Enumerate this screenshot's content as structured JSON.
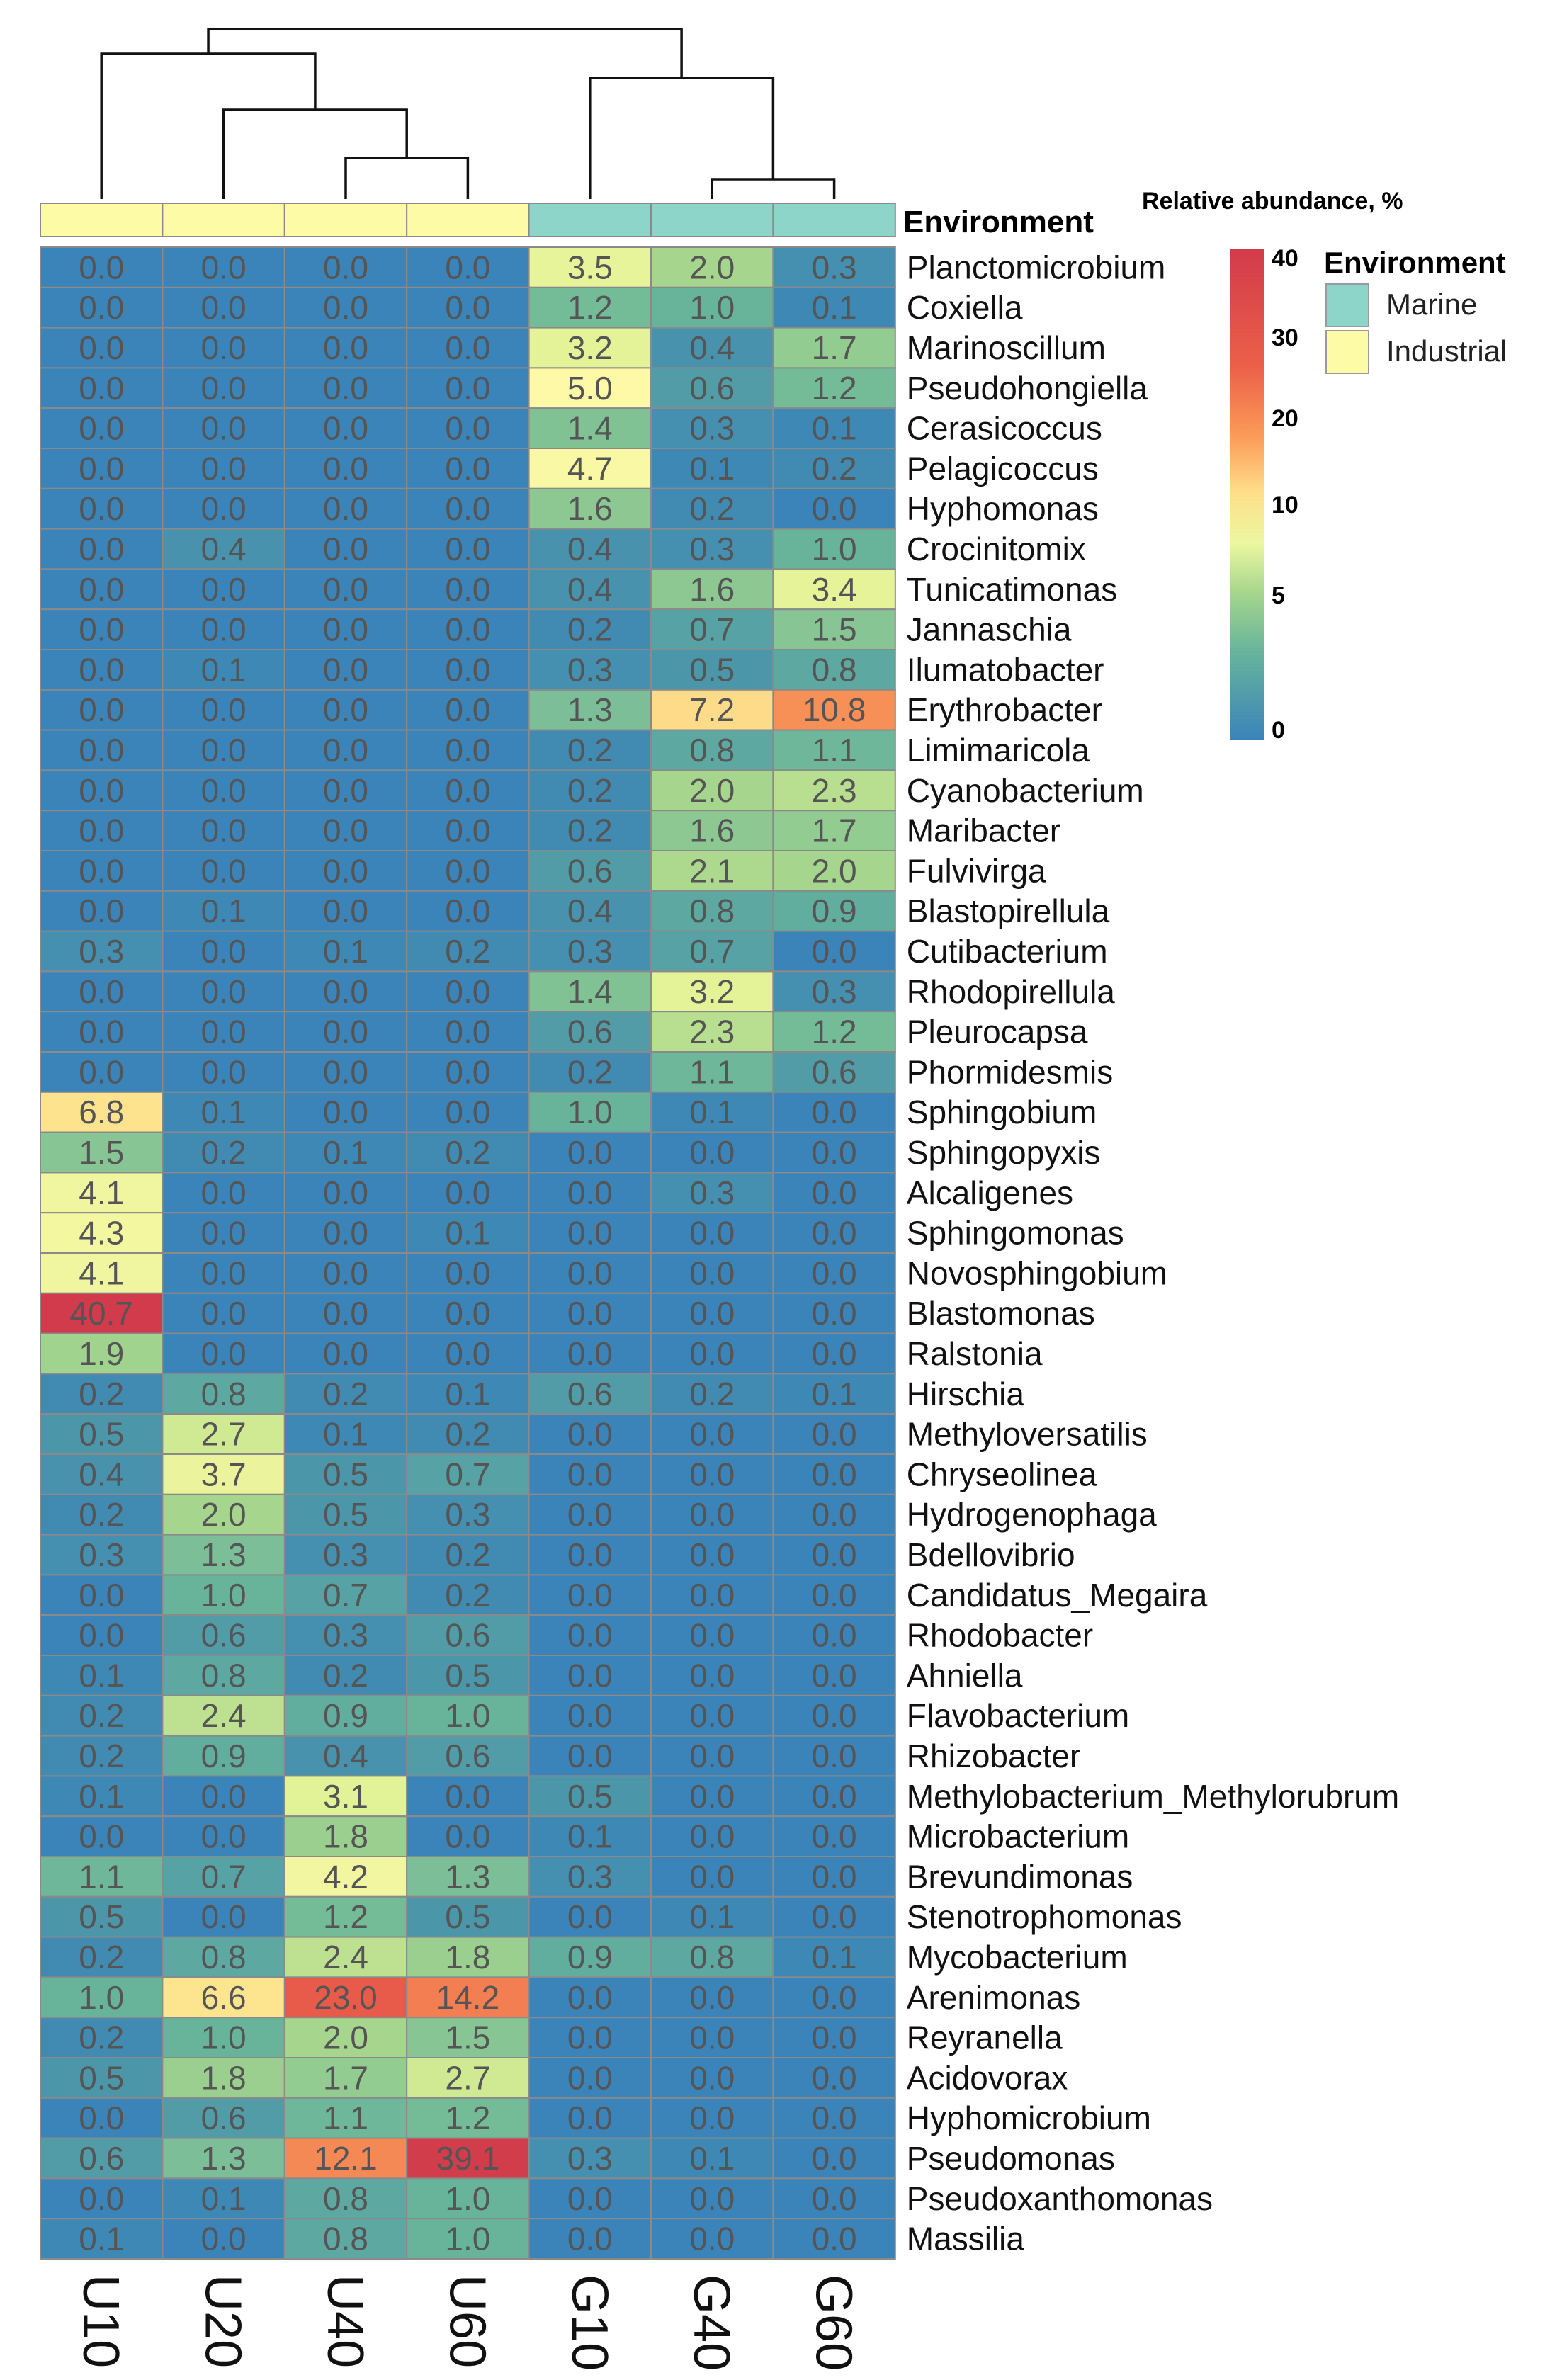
{
  "chart_data": {
    "type": "heatmap",
    "title": "",
    "colorbar_title": "Relative abundance, %",
    "colorbar_ticks": [
      "40",
      "30",
      "20",
      "10",
      "5",
      "0"
    ],
    "annotation_title": "Environment",
    "legend": {
      "title": "Environment",
      "items": [
        {
          "label": "Marine",
          "color": "#8dd5c9"
        },
        {
          "label": "Industrial",
          "color": "#fdfba6"
        }
      ]
    },
    "columns": [
      "U10",
      "U20",
      "U40",
      "U60",
      "G10",
      "G40",
      "G60"
    ],
    "column_environment": [
      "Industrial",
      "Industrial",
      "Industrial",
      "Industrial",
      "Marine",
      "Marine",
      "Marine"
    ],
    "rows": [
      {
        "name": "Planctomicrobium",
        "values": [
          "0.0",
          "0.0",
          "0.0",
          "0.0",
          "3.5",
          "2.0",
          "0.3"
        ]
      },
      {
        "name": "Coxiella",
        "values": [
          "0.0",
          "0.0",
          "0.0",
          "0.0",
          "1.2",
          "1.0",
          "0.1"
        ]
      },
      {
        "name": "Marinoscillum",
        "values": [
          "0.0",
          "0.0",
          "0.0",
          "0.0",
          "3.2",
          "0.4",
          "1.7"
        ]
      },
      {
        "name": "Pseudohongiella",
        "values": [
          "0.0",
          "0.0",
          "0.0",
          "0.0",
          "5.0",
          "0.6",
          "1.2"
        ]
      },
      {
        "name": "Cerasicoccus",
        "values": [
          "0.0",
          "0.0",
          "0.0",
          "0.0",
          "1.4",
          "0.3",
          "0.1"
        ]
      },
      {
        "name": "Pelagicoccus",
        "values": [
          "0.0",
          "0.0",
          "0.0",
          "0.0",
          "4.7",
          "0.1",
          "0.2"
        ]
      },
      {
        "name": "Hyphomonas",
        "values": [
          "0.0",
          "0.0",
          "0.0",
          "0.0",
          "1.6",
          "0.2",
          "0.0"
        ]
      },
      {
        "name": "Crocinitomix",
        "values": [
          "0.0",
          "0.4",
          "0.0",
          "0.0",
          "0.4",
          "0.3",
          "1.0"
        ]
      },
      {
        "name": "Tunicatimonas",
        "values": [
          "0.0",
          "0.0",
          "0.0",
          "0.0",
          "0.4",
          "1.6",
          "3.4"
        ]
      },
      {
        "name": "Jannaschia",
        "values": [
          "0.0",
          "0.0",
          "0.0",
          "0.0",
          "0.2",
          "0.7",
          "1.5"
        ]
      },
      {
        "name": "Ilumatobacter",
        "values": [
          "0.0",
          "0.1",
          "0.0",
          "0.0",
          "0.3",
          "0.5",
          "0.8"
        ]
      },
      {
        "name": "Erythrobacter",
        "values": [
          "0.0",
          "0.0",
          "0.0",
          "0.0",
          "1.3",
          "7.2",
          "10.8"
        ]
      },
      {
        "name": "Limimaricola",
        "values": [
          "0.0",
          "0.0",
          "0.0",
          "0.0",
          "0.2",
          "0.8",
          "1.1"
        ]
      },
      {
        "name": "Cyanobacterium",
        "values": [
          "0.0",
          "0.0",
          "0.0",
          "0.0",
          "0.2",
          "2.0",
          "2.3"
        ]
      },
      {
        "name": "Maribacter",
        "values": [
          "0.0",
          "0.0",
          "0.0",
          "0.0",
          "0.2",
          "1.6",
          "1.7"
        ]
      },
      {
        "name": "Fulvivirga",
        "values": [
          "0.0",
          "0.0",
          "0.0",
          "0.0",
          "0.6",
          "2.1",
          "2.0"
        ]
      },
      {
        "name": "Blastopirellula",
        "values": [
          "0.0",
          "0.1",
          "0.0",
          "0.0",
          "0.4",
          "0.8",
          "0.9"
        ]
      },
      {
        "name": "Cutibacterium",
        "values": [
          "0.3",
          "0.0",
          "0.1",
          "0.2",
          "0.3",
          "0.7",
          "0.0"
        ]
      },
      {
        "name": "Rhodopirellula",
        "values": [
          "0.0",
          "0.0",
          "0.0",
          "0.0",
          "1.4",
          "3.2",
          "0.3"
        ]
      },
      {
        "name": "Pleurocapsa",
        "values": [
          "0.0",
          "0.0",
          "0.0",
          "0.0",
          "0.6",
          "2.3",
          "1.2"
        ]
      },
      {
        "name": "Phormidesmis",
        "values": [
          "0.0",
          "0.0",
          "0.0",
          "0.0",
          "0.2",
          "1.1",
          "0.6"
        ]
      },
      {
        "name": "Sphingobium",
        "values": [
          "6.8",
          "0.1",
          "0.0",
          "0.0",
          "1.0",
          "0.1",
          "0.0"
        ]
      },
      {
        "name": "Sphingopyxis",
        "values": [
          "1.5",
          "0.2",
          "0.1",
          "0.2",
          "0.0",
          "0.0",
          "0.0"
        ]
      },
      {
        "name": "Alcaligenes",
        "values": [
          "4.1",
          "0.0",
          "0.0",
          "0.0",
          "0.0",
          "0.3",
          "0.0"
        ]
      },
      {
        "name": "Sphingomonas",
        "values": [
          "4.3",
          "0.0",
          "0.0",
          "0.1",
          "0.0",
          "0.0",
          "0.0"
        ]
      },
      {
        "name": "Novosphingobium",
        "values": [
          "4.1",
          "0.0",
          "0.0",
          "0.0",
          "0.0",
          "0.0",
          "0.0"
        ]
      },
      {
        "name": "Blastomonas",
        "values": [
          "40.7",
          "0.0",
          "0.0",
          "0.0",
          "0.0",
          "0.0",
          "0.0"
        ]
      },
      {
        "name": "Ralstonia",
        "values": [
          "1.9",
          "0.0",
          "0.0",
          "0.0",
          "0.0",
          "0.0",
          "0.0"
        ]
      },
      {
        "name": "Hirschia",
        "values": [
          "0.2",
          "0.8",
          "0.2",
          "0.1",
          "0.6",
          "0.2",
          "0.1"
        ]
      },
      {
        "name": "Methyloversatilis",
        "values": [
          "0.5",
          "2.7",
          "0.1",
          "0.2",
          "0.0",
          "0.0",
          "0.0"
        ]
      },
      {
        "name": "Chryseolinea",
        "values": [
          "0.4",
          "3.7",
          "0.5",
          "0.7",
          "0.0",
          "0.0",
          "0.0"
        ]
      },
      {
        "name": "Hydrogenophaga",
        "values": [
          "0.2",
          "2.0",
          "0.5",
          "0.3",
          "0.0",
          "0.0",
          "0.0"
        ]
      },
      {
        "name": "Bdellovibrio",
        "values": [
          "0.3",
          "1.3",
          "0.3",
          "0.2",
          "0.0",
          "0.0",
          "0.0"
        ]
      },
      {
        "name": "Candidatus_Megaira",
        "values": [
          "0.0",
          "1.0",
          "0.7",
          "0.2",
          "0.0",
          "0.0",
          "0.0"
        ]
      },
      {
        "name": "Rhodobacter",
        "values": [
          "0.0",
          "0.6",
          "0.3",
          "0.6",
          "0.0",
          "0.0",
          "0.0"
        ]
      },
      {
        "name": "Ahniella",
        "values": [
          "0.1",
          "0.8",
          "0.2",
          "0.5",
          "0.0",
          "0.0",
          "0.0"
        ]
      },
      {
        "name": "Flavobacterium",
        "values": [
          "0.2",
          "2.4",
          "0.9",
          "1.0",
          "0.0",
          "0.0",
          "0.0"
        ]
      },
      {
        "name": "Rhizobacter",
        "values": [
          "0.2",
          "0.9",
          "0.4",
          "0.6",
          "0.0",
          "0.0",
          "0.0"
        ]
      },
      {
        "name": "Methylobacterium_Methylorubrum",
        "values": [
          "0.1",
          "0.0",
          "3.1",
          "0.0",
          "0.5",
          "0.0",
          "0.0"
        ]
      },
      {
        "name": "Microbacterium",
        "values": [
          "0.0",
          "0.0",
          "1.8",
          "0.0",
          "0.1",
          "0.0",
          "0.0"
        ]
      },
      {
        "name": "Brevundimonas",
        "values": [
          "1.1",
          "0.7",
          "4.2",
          "1.3",
          "0.3",
          "0.0",
          "0.0"
        ]
      },
      {
        "name": "Stenotrophomonas",
        "values": [
          "0.5",
          "0.0",
          "1.2",
          "0.5",
          "0.0",
          "0.1",
          "0.0"
        ]
      },
      {
        "name": "Mycobacterium",
        "values": [
          "0.2",
          "0.8",
          "2.4",
          "1.8",
          "0.9",
          "0.8",
          "0.1"
        ]
      },
      {
        "name": "Arenimonas",
        "values": [
          "1.0",
          "6.6",
          "23.0",
          "14.2",
          "0.0",
          "0.0",
          "0.0"
        ]
      },
      {
        "name": "Reyranella",
        "values": [
          "0.2",
          "1.0",
          "2.0",
          "1.5",
          "0.0",
          "0.0",
          "0.0"
        ]
      },
      {
        "name": "Acidovorax",
        "values": [
          "0.5",
          "1.8",
          "1.7",
          "2.7",
          "0.0",
          "0.0",
          "0.0"
        ]
      },
      {
        "name": "Hyphomicrobium",
        "values": [
          "0.0",
          "0.6",
          "1.1",
          "1.2",
          "0.0",
          "0.0",
          "0.0"
        ]
      },
      {
        "name": "Pseudomonas",
        "values": [
          "0.6",
          "1.3",
          "12.1",
          "39.1",
          "0.3",
          "0.1",
          "0.0"
        ]
      },
      {
        "name": "Pseudoxanthomonas",
        "values": [
          "0.0",
          "0.1",
          "0.8",
          "1.0",
          "0.0",
          "0.0",
          "0.0"
        ]
      },
      {
        "name": "Massilia",
        "values": [
          "0.1",
          "0.0",
          "0.8",
          "1.0",
          "0.0",
          "0.0",
          "0.0"
        ]
      }
    ],
    "dendrogram": {
      "tree": [
        [
          0,
          [
            1,
            [
              2,
              3
            ]
          ]
        ],
        [
          4,
          [
            5,
            6
          ]
        ]
      ]
    }
  }
}
